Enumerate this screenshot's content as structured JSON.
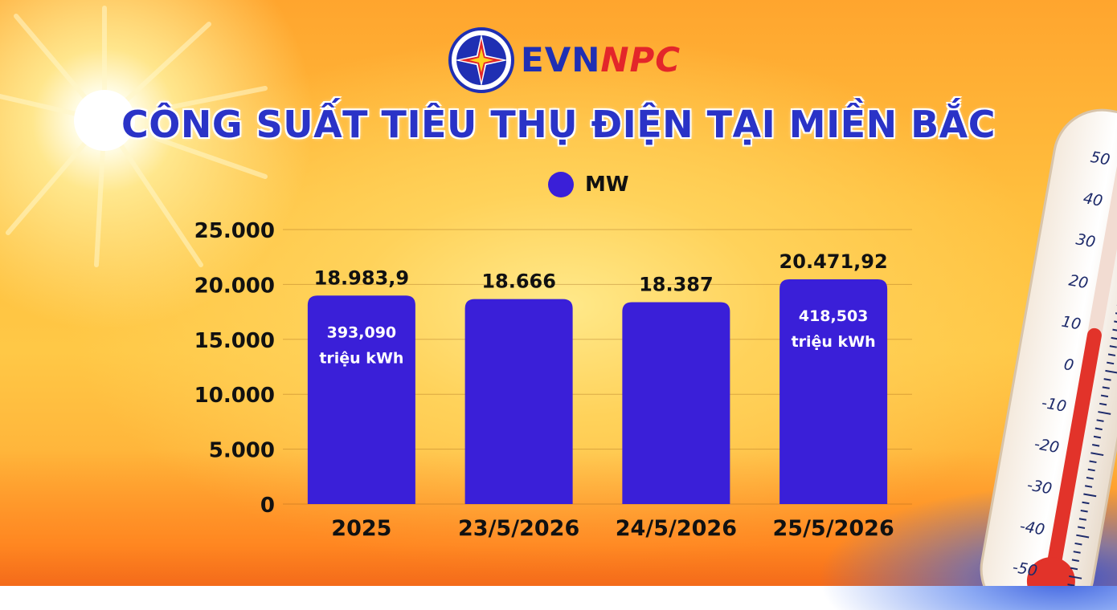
{
  "brand": {
    "part1": "EVN",
    "part2": "NPC"
  },
  "title": "CÔNG SUẤT TIÊU THỤ ĐIỆN TẠI MIỀN BẮC",
  "colors": {
    "bar": "#3a1fd8",
    "title": "#2a33c7",
    "brand_blue": "#1f2fb3",
    "brand_red": "#e3262a"
  },
  "chart_data": {
    "type": "bar",
    "title": "CÔNG SUẤT TIÊU THỤ ĐIỆN TẠI MIỀN BẮC",
    "categories": [
      "2025",
      "23/5/2026",
      "24/5/2026",
      "25/5/2026"
    ],
    "series": [
      {
        "name": "MW",
        "values": [
          18983.9,
          18666,
          18387,
          20471.92
        ]
      }
    ],
    "value_labels": [
      "18.983,9",
      "18.666",
      "18.387",
      "20.471,92"
    ],
    "inner_labels": [
      {
        "value": "393,090",
        "unit": "triệu kWh"
      },
      null,
      null,
      {
        "value": "418,503",
        "unit": "triệu kWh"
      }
    ],
    "ylim": [
      0,
      25000
    ],
    "yticks": [
      0,
      5000,
      10000,
      15000,
      20000,
      25000
    ],
    "ytick_labels": [
      "0",
      "5.000",
      "10.000",
      "15.000",
      "20.000",
      "25.000"
    ],
    "legend": {
      "label": "MW",
      "placement": "top-center"
    },
    "grid": true
  },
  "thermometer": {
    "scale_labels": [
      "50",
      "40",
      "30",
      "20",
      "10",
      "0",
      "-10",
      "-20",
      "-30",
      "-40",
      "-50"
    ]
  }
}
